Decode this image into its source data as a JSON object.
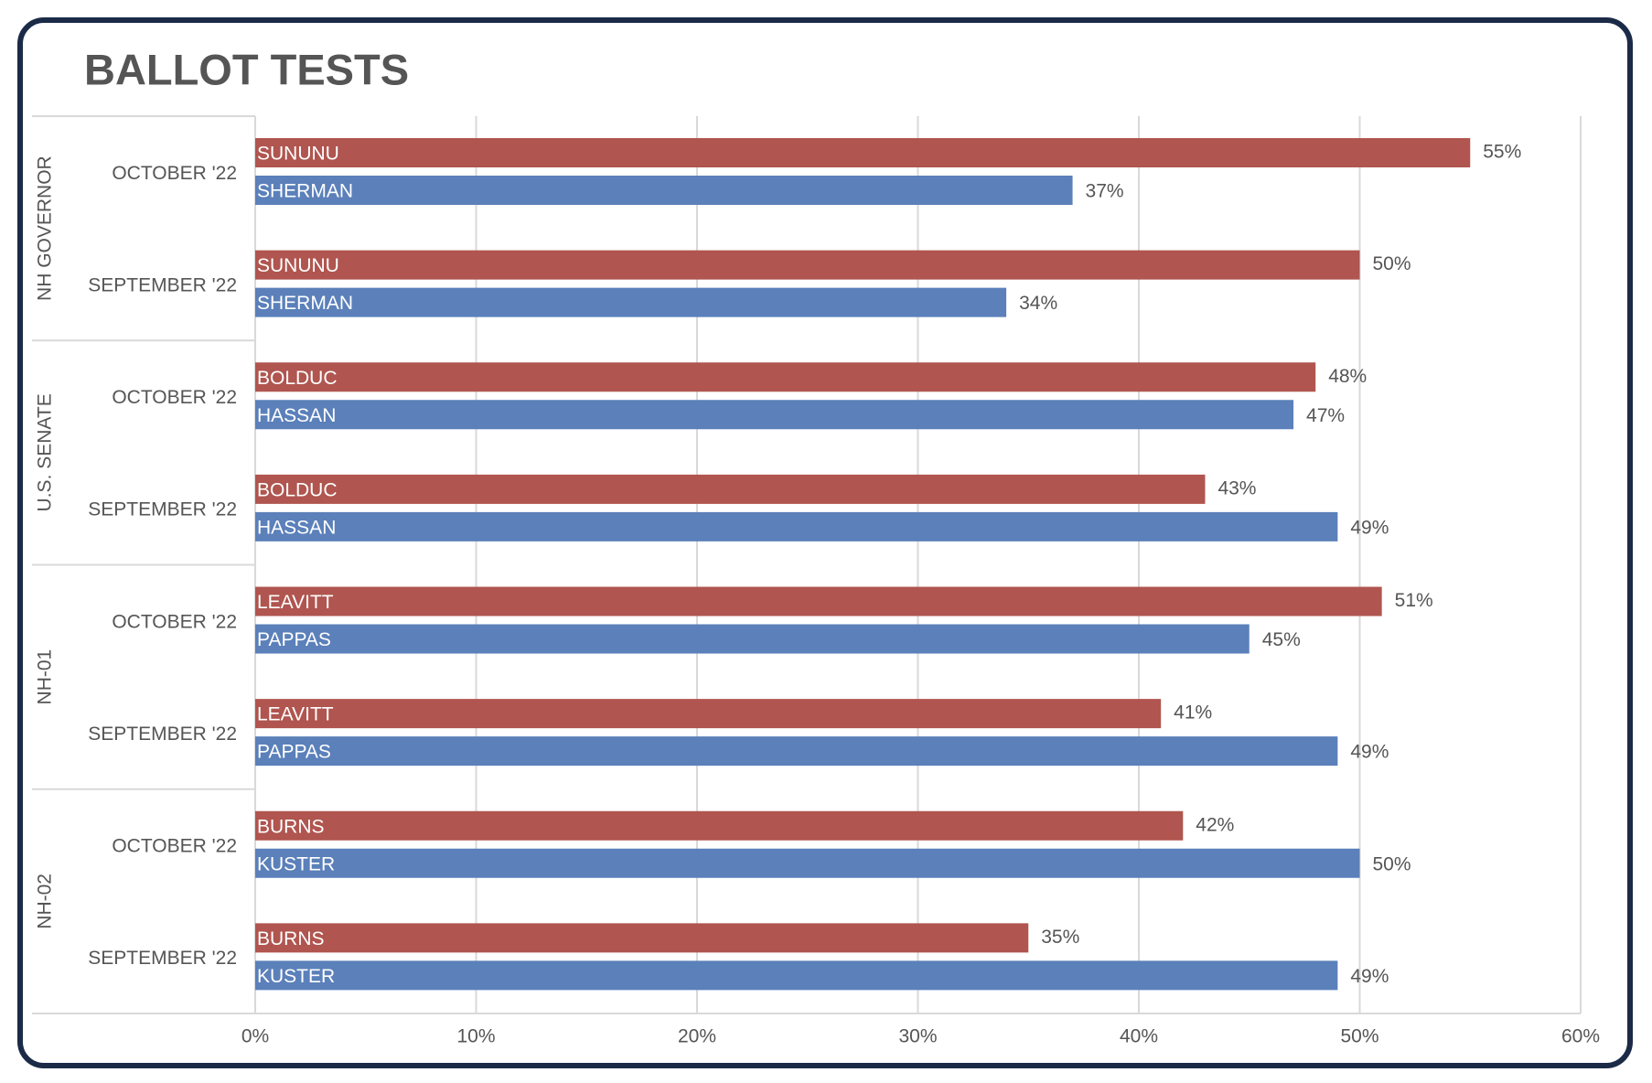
{
  "chart_data": {
    "type": "bar",
    "orientation": "horizontal",
    "title": "BALLOT TESTS",
    "groups": [
      {
        "name": "NH GOVERNOR",
        "categories": [
          "OCTOBER '22",
          "SEPTEMBER '22"
        ]
      },
      {
        "name": "U.S. SENATE",
        "categories": [
          "OCTOBER '22",
          "SEPTEMBER '22"
        ]
      },
      {
        "name": "NH-01",
        "categories": [
          "OCTOBER '22",
          "SEPTEMBER '22"
        ]
      },
      {
        "name": "NH-02",
        "categories": [
          "OCTOBER '22",
          "SEPTEMBER '22"
        ]
      }
    ],
    "series": [
      {
        "color": "#b0554f",
        "labels": [
          "SUNUNU",
          "SUNUNU",
          "BOLDUC",
          "BOLDUC",
          "LEAVITT",
          "LEAVITT",
          "BURNS",
          "BURNS"
        ],
        "values": [
          55,
          50,
          48,
          43,
          51,
          41,
          42,
          35
        ],
        "value_labels": [
          "55%",
          "50%",
          "48%",
          "43%",
          "51%",
          "41%",
          "42%",
          "35%"
        ]
      },
      {
        "color": "#5b80ba",
        "labels": [
          "SHERMAN",
          "SHERMAN",
          "HASSAN",
          "HASSAN",
          "PAPPAS",
          "PAPPAS",
          "KUSTER",
          "KUSTER"
        ],
        "values": [
          37,
          34,
          47,
          49,
          45,
          49,
          50,
          49
        ],
        "value_labels": [
          "37%",
          "34%",
          "47%",
          "49%",
          "45%",
          "49%",
          "50%",
          "49%"
        ]
      }
    ],
    "xlim": [
      0,
      60
    ],
    "xticks": [
      {
        "value": 0,
        "label": "0%"
      },
      {
        "value": 10,
        "label": "10%"
      },
      {
        "value": 20,
        "label": "20%"
      },
      {
        "value": 30,
        "label": "30%"
      },
      {
        "value": 40,
        "label": "40%"
      },
      {
        "value": 50,
        "label": "50%"
      },
      {
        "value": 60,
        "label": "60%"
      }
    ],
    "grid": true
  }
}
